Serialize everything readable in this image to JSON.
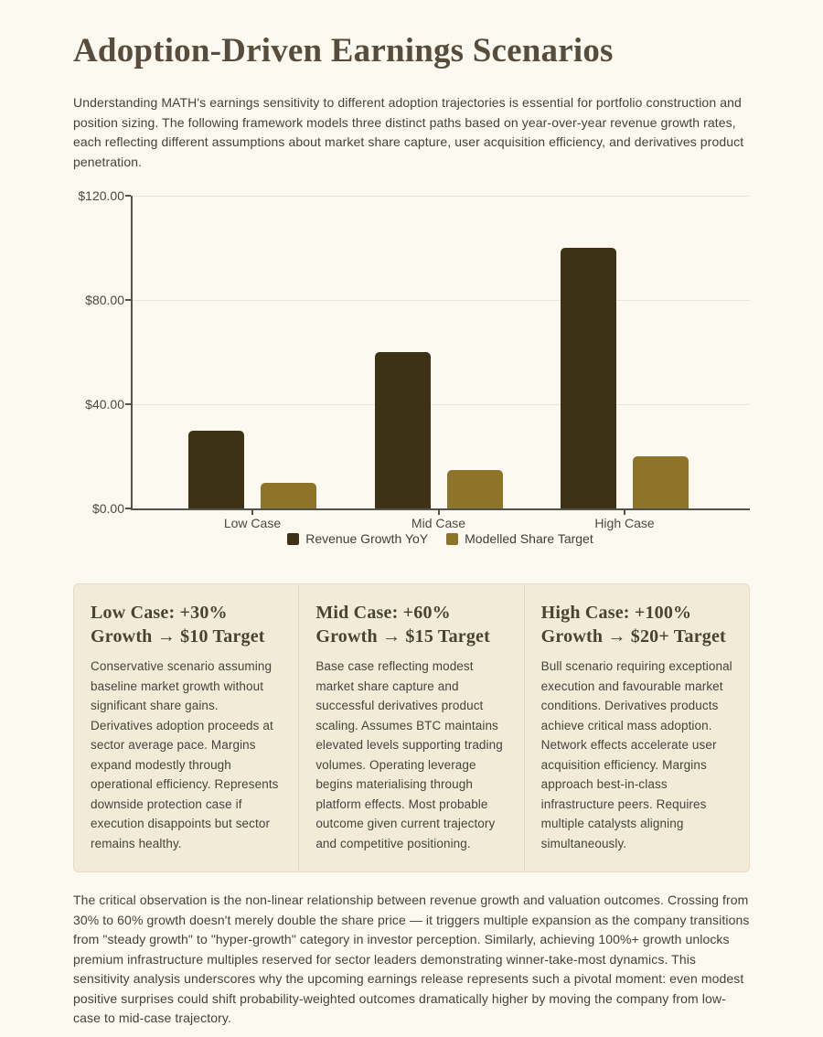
{
  "header": {
    "title": "Adoption-Driven Earnings Scenarios"
  },
  "intro": "Understanding MATH's earnings sensitivity to different adoption trajectories is essential for portfolio construction and position sizing. The following framework models three distinct paths based on year-over-year revenue growth rates, each reflecting different assumptions about market share capture, user acquisition efficiency, and derivatives product penetration.",
  "chart_data": {
    "type": "bar",
    "categories": [
      "Low Case",
      "Mid Case",
      "High Case"
    ],
    "series": [
      {
        "name": "Revenue Growth YoY",
        "values": [
          30,
          60,
          100
        ],
        "color": "#3d3216"
      },
      {
        "name": "Modelled Share Target",
        "values": [
          10,
          15,
          20
        ],
        "color": "#8d7429"
      }
    ],
    "title": "",
    "xlabel": "",
    "ylabel": "",
    "ylim": [
      0,
      120
    ],
    "yticks": [
      0,
      40,
      80,
      120
    ],
    "ytick_labels": [
      "$0.00",
      "$40.00",
      "$80.00",
      "$120.00"
    ],
    "grid": true,
    "legend_position": "bottom"
  },
  "cards": [
    {
      "title": "Low Case: +30% Growth → $10 Target",
      "body": "Conservative scenario assuming baseline market growth without significant share gains. Derivatives adoption proceeds at sector average pace. Margins expand modestly through operational efficiency. Represents downside protection case if execution disappoints but sector remains healthy."
    },
    {
      "title": "Mid Case: +60% Growth → $15 Target",
      "body": "Base case reflecting modest market share capture and successful derivatives product scaling. Assumes BTC maintains elevated levels supporting trading volumes. Operating leverage begins materialising through platform effects. Most probable outcome given current trajectory and competitive positioning."
    },
    {
      "title": "High Case: +100% Growth → $20+ Target",
      "body": "Bull scenario requiring exceptional execution and favourable market conditions. Derivatives products achieve critical mass adoption. Network effects accelerate user acquisition efficiency. Margins approach best-in-class infrastructure peers. Requires multiple catalysts aligning simultaneously."
    }
  ],
  "closing": "The critical observation is the non-linear relationship between revenue growth and valuation outcomes. Crossing from 30% to 60% growth doesn't merely double the share price — it triggers multiple expansion as the company transitions from \"steady growth\" to \"hyper-growth\" category in investor perception. Similarly, achieving 100%+ growth unlocks premium infrastructure multiples reserved for sector leaders demonstrating winner-take-most dynamics. This sensitivity analysis underscores why the upcoming earnings release represents such a pivotal moment: even modest positive surprises could shift probability-weighted outcomes dramatically higher by moving the company from low-case to mid-case trajectory.",
  "colors": {
    "page_bg": "#fcfaf0",
    "card_bg": "#f2ebd7",
    "bar_revenue_growth": "#3d3216",
    "bar_share_target": "#8d7429",
    "axis": "#53524a",
    "gridline": "#e8e5dc",
    "title_text": "#584d3c",
    "body_text": "#43423a"
  }
}
